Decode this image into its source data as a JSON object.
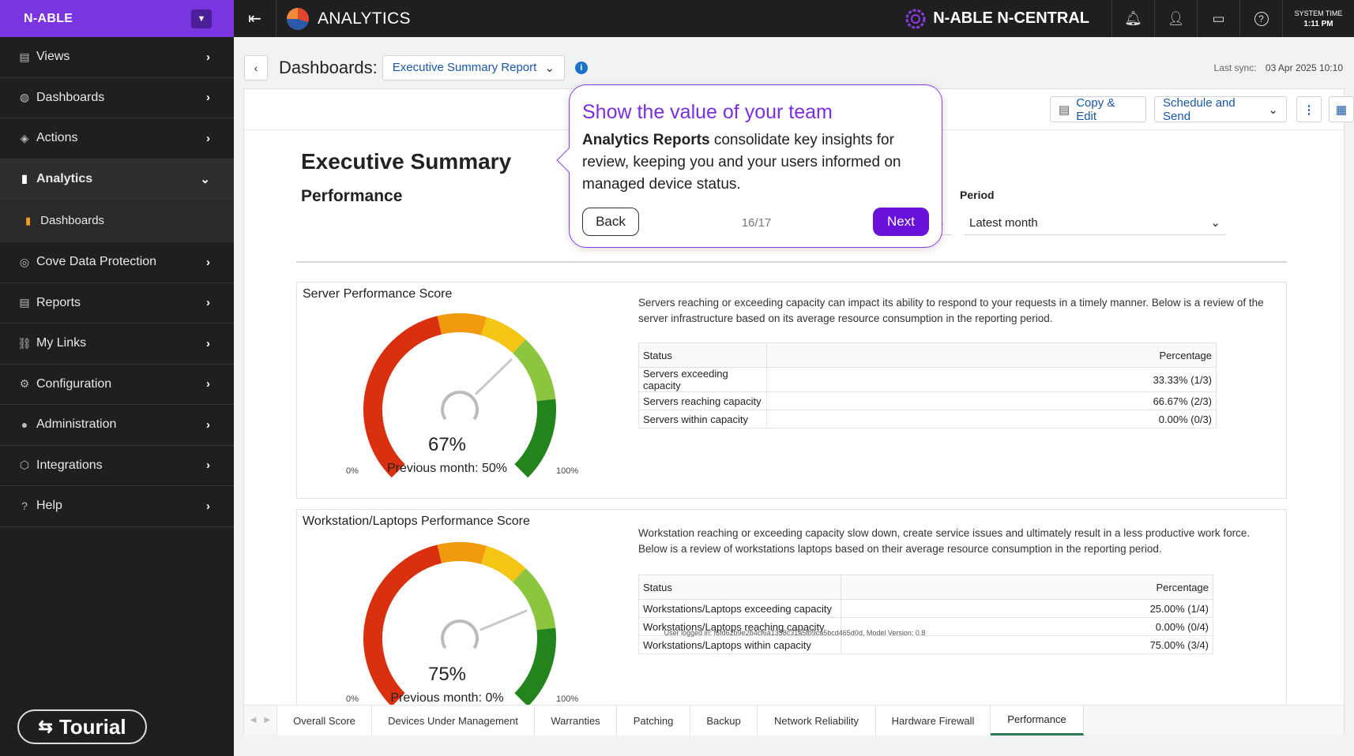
{
  "sidebar": {
    "brand": "N-ABLE",
    "items": [
      {
        "label": "Views",
        "icon": "views-icon"
      },
      {
        "label": "Dashboards",
        "icon": "dashboards-icon"
      },
      {
        "label": "Actions",
        "icon": "actions-icon"
      },
      {
        "label": "Analytics",
        "icon": "analytics-icon"
      },
      {
        "label": "Dashboards",
        "icon": "bar-chart-icon"
      },
      {
        "label": "Cove Data Protection",
        "icon": "cove-icon"
      },
      {
        "label": "Reports",
        "icon": "reports-icon"
      },
      {
        "label": "My Links",
        "icon": "link-icon"
      },
      {
        "label": "Configuration",
        "icon": "gear-icon"
      },
      {
        "label": "Administration",
        "icon": "user-icon"
      },
      {
        "label": "Integrations",
        "icon": "integrations-icon"
      },
      {
        "label": "Help",
        "icon": "help-icon"
      }
    ],
    "tourial": "Tourial"
  },
  "topbar": {
    "app_title": "ANALYTICS",
    "product": "N-ABLE N-CENTRAL",
    "systime_label": "SYSTEM TIME",
    "systime_value": "1:11 PM"
  },
  "header": {
    "dashboards_label": "Dashboards:",
    "selected_dashboard": "Executive Summary Report",
    "last_sync_label": "Last sync:",
    "last_sync_value": "03 Apr 2025 10:10"
  },
  "toolbar": {
    "copy_edit": "Copy & Edit",
    "schedule_send": "Schedule and Send"
  },
  "report": {
    "title": "Executive Summary",
    "subtitle": "Performance",
    "period_label": "Period",
    "period_value": "Latest month",
    "server": {
      "title": "Server Performance Score",
      "value": "67%",
      "previous": "Previous month: 50%",
      "min": "0%",
      "max": "100%",
      "value_num": 67,
      "previous_num": 50,
      "description": "Servers reaching or exceeding capacity can impact its ability to respond to your requests in a timely manner. Below is a review of the server infrastructure based on its average resource consumption in the reporting period.",
      "table_headers": [
        "Status",
        "Percentage"
      ],
      "rows": [
        [
          "Servers exceeding capacity",
          "33.33% (1/3)"
        ],
        [
          "Servers reaching capacity",
          "66.67% (2/3)"
        ],
        [
          "Servers within capacity",
          "0.00% (0/3)"
        ]
      ]
    },
    "workstation": {
      "title": "Workstation/Laptops Performance Score",
      "value": "75%",
      "previous": "Previous month: 0%",
      "min": "0%",
      "max": "100%",
      "value_num": 75,
      "previous_num": 0,
      "description": "Workstation reaching or exceeding capacity slow down, create service issues and ultimately result in a less productive work force. Below is a review of workstations laptops based on their average resource consumption in the reporting period.",
      "table_headers": [
        "Status",
        "Percentage"
      ],
      "rows": [
        [
          "Workstations/Laptops exceeding capacity",
          "25.00% (1/4)"
        ],
        [
          "Workstations/Laptops reaching capacity",
          "0.00% (0/4)"
        ],
        [
          "Workstations/Laptops within capacity",
          "75.00% (3/4)"
        ]
      ]
    },
    "footer_note": "User logged in: f6fd62b9e2b4cf6a1338c31a5fb9ca5bcd465d0d, Model Version: 0.8"
  },
  "tabs": [
    "Overall Score",
    "Devices Under Management",
    "Warranties",
    "Patching",
    "Backup",
    "Network Reliability",
    "Hardware Firewall",
    "Performance"
  ],
  "tour": {
    "title": "Show the value of your team",
    "body_bold": "Analytics Reports",
    "body_rest": " consolidate key insights for review, keeping you and your users informed on managed device status.",
    "back": "Back",
    "count": "16/17",
    "next": "Next"
  },
  "colors": {
    "brand": "#7a35e0",
    "accent_purple": "#6a11d9",
    "gauge_red": "#d9300f",
    "gauge_orange": "#f29a0e",
    "gauge_yellow": "#f5c516",
    "gauge_lightgreen": "#8cc63f",
    "gauge_green": "#23841d"
  }
}
